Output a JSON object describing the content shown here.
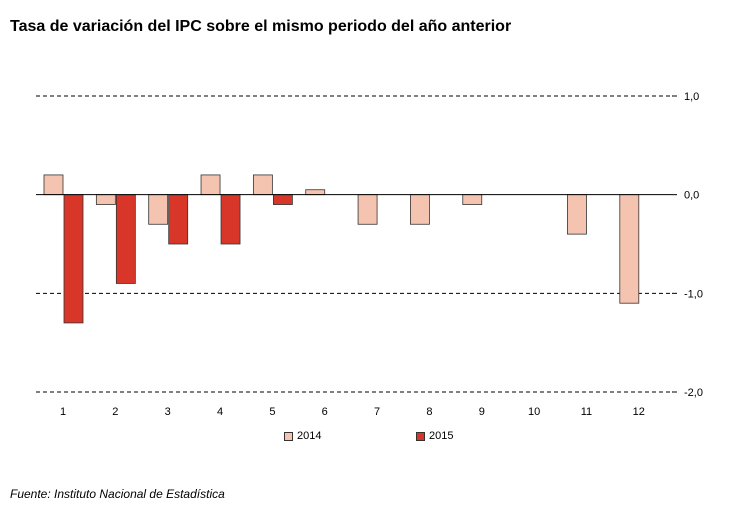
{
  "chart_data": {
    "type": "bar",
    "title": "Tasa de variación del IPC sobre el mismo periodo del año anterior",
    "categories": [
      "1",
      "2",
      "3",
      "4",
      "5",
      "6",
      "7",
      "8",
      "9",
      "10",
      "11",
      "12"
    ],
    "series": [
      {
        "name": "2014",
        "color": "#f5c4b0",
        "values": [
          0.2,
          -0.1,
          -0.3,
          0.2,
          0.2,
          0.05,
          -0.3,
          -0.3,
          -0.1,
          0.0,
          -0.4,
          -1.1
        ]
      },
      {
        "name": "2015",
        "color": "#d9362a",
        "values": [
          -1.3,
          -0.9,
          -0.5,
          -0.5,
          -0.1,
          null,
          null,
          null,
          null,
          null,
          null,
          null
        ]
      }
    ],
    "y_ticks": [
      "1,0",
      "0,0",
      "-1,0",
      "-2,0"
    ],
    "ylim": [
      -2,
      1
    ],
    "grid": true,
    "legend_position": "bottom"
  },
  "source": "Fuente: Instituto Nacional de Estadística"
}
